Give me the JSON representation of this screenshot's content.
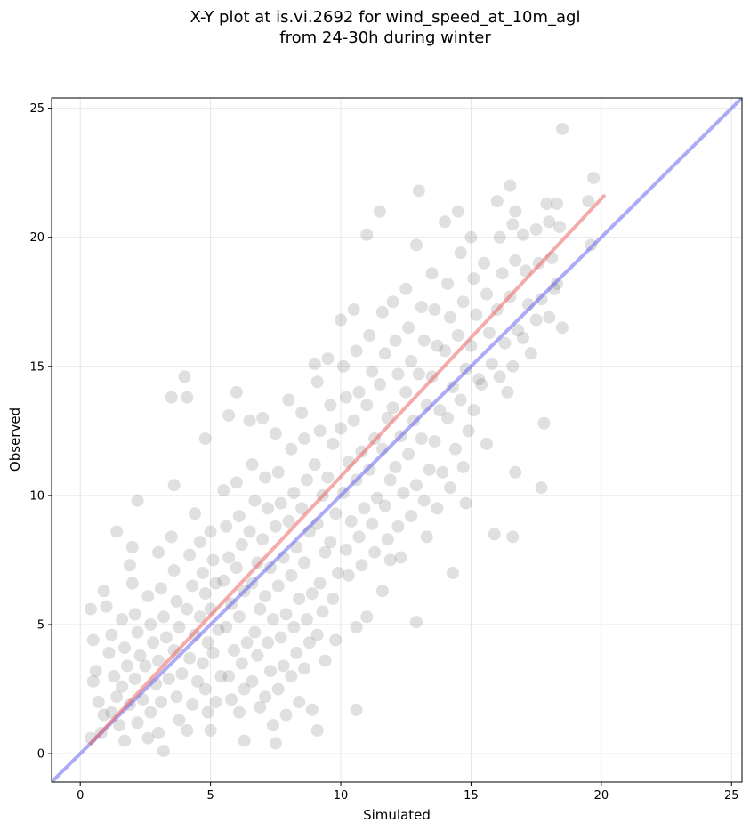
{
  "chart_data": {
    "type": "scatter",
    "title_line1": "X-Y plot at is.vi.2692 for wind_speed_at_10m_agl",
    "title_line2": "from 24-30h during winter",
    "xlabel": "Simulated",
    "ylabel": "Observed",
    "xlim": [
      -1.1,
      25.4
    ],
    "ylim": [
      -1.1,
      25.4
    ],
    "xticks": [
      0,
      5,
      10,
      15,
      20,
      25
    ],
    "yticks": [
      0,
      5,
      10,
      15,
      20,
      25
    ],
    "grid": true,
    "scatter_color": "#555555",
    "scatter_opacity": 0.18,
    "reference_line": {
      "name": "1:1",
      "color": "#6666ee",
      "from": [
        -1.1,
        -1.1
      ],
      "to": [
        25.4,
        25.4
      ]
    },
    "fit_line": {
      "name": "fit",
      "color": "#ee6666",
      "from": [
        0.4,
        0.4
      ],
      "to": [
        20.1,
        21.6
      ]
    },
    "points": [
      [
        0.4,
        5.6
      ],
      [
        0.5,
        4.4
      ],
      [
        0.6,
        3.2
      ],
      [
        0.5,
        2.8
      ],
      [
        0.7,
        2.0
      ],
      [
        0.9,
        1.5
      ],
      [
        0.8,
        0.8
      ],
      [
        0.4,
        0.6
      ],
      [
        0.9,
        6.3
      ],
      [
        1.0,
        5.7
      ],
      [
        1.2,
        4.6
      ],
      [
        1.1,
        3.9
      ],
      [
        1.3,
        3.0
      ],
      [
        1.4,
        2.2
      ],
      [
        1.2,
        1.6
      ],
      [
        1.5,
        1.1
      ],
      [
        1.4,
        8.6
      ],
      [
        1.6,
        5.2
      ],
      [
        1.7,
        4.1
      ],
      [
        1.8,
        3.4
      ],
      [
        1.6,
        2.6
      ],
      [
        1.9,
        1.9
      ],
      [
        1.7,
        0.5
      ],
      [
        1.9,
        7.3
      ],
      [
        2.0,
        6.6
      ],
      [
        2.1,
        5.4
      ],
      [
        2.2,
        4.7
      ],
      [
        2.3,
        3.8
      ],
      [
        2.1,
        2.9
      ],
      [
        2.4,
        2.1
      ],
      [
        2.2,
        1.2
      ],
      [
        2.6,
        0.6
      ],
      [
        2.2,
        9.8
      ],
      [
        2.0,
        8.0
      ],
      [
        2.6,
        6.1
      ],
      [
        2.7,
        5.0
      ],
      [
        2.8,
        4.3
      ],
      [
        2.5,
        3.4
      ],
      [
        2.9,
        2.7
      ],
      [
        2.7,
        1.6
      ],
      [
        3.0,
        7.8
      ],
      [
        3.1,
        6.4
      ],
      [
        3.2,
        5.3
      ],
      [
        3.3,
        4.5
      ],
      [
        3.0,
        3.6
      ],
      [
        3.4,
        2.9
      ],
      [
        3.1,
        2.0
      ],
      [
        3.0,
        0.8
      ],
      [
        3.2,
        0.1
      ],
      [
        3.5,
        13.8
      ],
      [
        3.5,
        8.4
      ],
      [
        3.6,
        7.1
      ],
      [
        3.7,
        5.9
      ],
      [
        3.8,
        4.9
      ],
      [
        3.6,
        4.0
      ],
      [
        3.9,
        3.1
      ],
      [
        3.7,
        2.2
      ],
      [
        3.8,
        1.3
      ],
      [
        3.6,
        10.4
      ],
      [
        4.0,
        14.6
      ],
      [
        4.1,
        13.8
      ],
      [
        4.2,
        7.7
      ],
      [
        4.3,
        6.5
      ],
      [
        4.1,
        5.6
      ],
      [
        4.4,
        4.6
      ],
      [
        4.2,
        3.7
      ],
      [
        4.5,
        2.8
      ],
      [
        4.3,
        1.9
      ],
      [
        4.1,
        0.9
      ],
      [
        4.4,
        9.3
      ],
      [
        4.6,
        8.2
      ],
      [
        4.7,
        7.0
      ],
      [
        4.8,
        6.2
      ],
      [
        4.6,
        5.3
      ],
      [
        4.9,
        4.3
      ],
      [
        4.7,
        3.5
      ],
      [
        4.8,
        2.5
      ],
      [
        4.9,
        1.6
      ],
      [
        4.8,
        12.2
      ],
      [
        5.0,
        8.6
      ],
      [
        5.1,
        7.5
      ],
      [
        5.2,
        6.6
      ],
      [
        5.0,
        5.6
      ],
      [
        5.3,
        4.8
      ],
      [
        5.1,
        3.9
      ],
      [
        5.4,
        3.0
      ],
      [
        5.2,
        2.0
      ],
      [
        5.0,
        0.9
      ],
      [
        5.5,
        10.2
      ],
      [
        5.6,
        8.8
      ],
      [
        5.7,
        7.6
      ],
      [
        5.5,
        6.7
      ],
      [
        5.8,
        5.8
      ],
      [
        5.6,
        4.9
      ],
      [
        5.9,
        4.0
      ],
      [
        5.7,
        3.0
      ],
      [
        5.8,
        2.1
      ],
      [
        5.7,
        13.1
      ],
      [
        6.0,
        14.0
      ],
      [
        6.0,
        10.5
      ],
      [
        6.1,
        9.2
      ],
      [
        6.2,
        8.1
      ],
      [
        6.0,
        7.2
      ],
      [
        6.3,
        6.3
      ],
      [
        6.1,
        5.3
      ],
      [
        6.4,
        4.3
      ],
      [
        6.2,
        3.5
      ],
      [
        6.3,
        2.5
      ],
      [
        6.1,
        1.6
      ],
      [
        6.3,
        0.5
      ],
      [
        6.5,
        12.9
      ],
      [
        6.6,
        11.2
      ],
      [
        6.7,
        9.8
      ],
      [
        6.5,
        8.6
      ],
      [
        6.8,
        7.4
      ],
      [
        6.6,
        6.6
      ],
      [
        6.9,
        5.6
      ],
      [
        6.7,
        4.7
      ],
      [
        6.8,
        3.8
      ],
      [
        6.6,
        2.8
      ],
      [
        6.9,
        1.8
      ],
      [
        7.0,
        13.0
      ],
      [
        7.1,
        10.7
      ],
      [
        7.2,
        9.5
      ],
      [
        7.0,
        8.3
      ],
      [
        7.3,
        7.2
      ],
      [
        7.1,
        6.1
      ],
      [
        7.4,
        5.2
      ],
      [
        7.2,
        4.3
      ],
      [
        7.3,
        3.2
      ],
      [
        7.1,
        2.2
      ],
      [
        7.4,
        1.1
      ],
      [
        7.5,
        12.4
      ],
      [
        7.6,
        10.9
      ],
      [
        7.7,
        9.7
      ],
      [
        7.5,
        8.8
      ],
      [
        7.8,
        7.6
      ],
      [
        7.6,
        6.5
      ],
      [
        7.9,
        5.4
      ],
      [
        7.7,
        4.5
      ],
      [
        7.8,
        3.4
      ],
      [
        7.6,
        2.5
      ],
      [
        7.9,
        1.5
      ],
      [
        7.5,
        0.4
      ],
      [
        8.0,
        13.7
      ],
      [
        8.1,
        11.8
      ],
      [
        8.2,
        10.1
      ],
      [
        8.0,
        9.0
      ],
      [
        8.3,
        8.0
      ],
      [
        8.1,
        6.9
      ],
      [
        8.4,
        6.0
      ],
      [
        8.2,
        4.9
      ],
      [
        8.3,
        3.9
      ],
      [
        8.1,
        3.0
      ],
      [
        8.4,
        2.0
      ],
      [
        8.5,
        13.2
      ],
      [
        8.6,
        12.2
      ],
      [
        8.7,
        10.6
      ],
      [
        8.5,
        9.5
      ],
      [
        8.8,
        8.6
      ],
      [
        8.6,
        7.4
      ],
      [
        8.9,
        6.2
      ],
      [
        8.7,
        5.2
      ],
      [
        8.8,
        4.3
      ],
      [
        8.6,
        3.3
      ],
      [
        8.9,
        1.7
      ],
      [
        9.0,
        15.1
      ],
      [
        9.1,
        14.4
      ],
      [
        9.2,
        12.5
      ],
      [
        9.0,
        11.2
      ],
      [
        9.3,
        10.0
      ],
      [
        9.1,
        8.9
      ],
      [
        9.4,
        7.8
      ],
      [
        9.2,
        6.6
      ],
      [
        9.3,
        5.5
      ],
      [
        9.1,
        4.6
      ],
      [
        9.4,
        3.6
      ],
      [
        9.1,
        0.9
      ],
      [
        9.5,
        15.3
      ],
      [
        9.6,
        13.5
      ],
      [
        9.7,
        12.0
      ],
      [
        9.5,
        10.7
      ],
      [
        9.8,
        9.3
      ],
      [
        9.6,
        8.2
      ],
      [
        9.9,
        7.0
      ],
      [
        9.7,
        6.0
      ],
      [
        9.8,
        4.4
      ],
      [
        10.0,
        16.8
      ],
      [
        10.1,
        15.0
      ],
      [
        10.2,
        13.8
      ],
      [
        10.0,
        12.6
      ],
      [
        10.3,
        11.3
      ],
      [
        10.1,
        10.1
      ],
      [
        10.4,
        9.0
      ],
      [
        10.2,
        7.9
      ],
      [
        10.3,
        6.9
      ],
      [
        10.5,
        17.2
      ],
      [
        10.6,
        15.6
      ],
      [
        10.7,
        14.0
      ],
      [
        10.5,
        12.9
      ],
      [
        10.8,
        11.7
      ],
      [
        10.6,
        10.6
      ],
      [
        10.9,
        9.5
      ],
      [
        10.7,
        8.4
      ],
      [
        10.8,
        7.3
      ],
      [
        10.6,
        4.9
      ],
      [
        10.6,
        1.7
      ],
      [
        11.0,
        20.1
      ],
      [
        11.1,
        16.2
      ],
      [
        11.2,
        14.8
      ],
      [
        11.0,
        13.5
      ],
      [
        11.3,
        12.2
      ],
      [
        11.1,
        11.0
      ],
      [
        11.4,
        9.9
      ],
      [
        11.2,
        8.9
      ],
      [
        11.3,
        7.8
      ],
      [
        11.0,
        5.3
      ],
      [
        11.5,
        21.0
      ],
      [
        11.6,
        17.1
      ],
      [
        11.7,
        15.5
      ],
      [
        11.5,
        14.3
      ],
      [
        11.8,
        13.0
      ],
      [
        11.6,
        11.8
      ],
      [
        11.9,
        10.6
      ],
      [
        11.7,
        9.6
      ],
      [
        11.8,
        8.3
      ],
      [
        11.6,
        6.3
      ],
      [
        11.9,
        7.5
      ],
      [
        12.0,
        17.5
      ],
      [
        12.1,
        16.0
      ],
      [
        12.2,
        14.7
      ],
      [
        12.0,
        13.4
      ],
      [
        12.3,
        12.3
      ],
      [
        12.1,
        11.1
      ],
      [
        12.4,
        10.1
      ],
      [
        12.2,
        8.8
      ],
      [
        12.3,
        7.6
      ],
      [
        12.5,
        18.0
      ],
      [
        12.6,
        16.5
      ],
      [
        12.7,
        15.2
      ],
      [
        12.5,
        14.0
      ],
      [
        12.8,
        12.9
      ],
      [
        12.6,
        11.6
      ],
      [
        12.9,
        10.4
      ],
      [
        12.7,
        9.2
      ],
      [
        12.9,
        5.1
      ],
      [
        13.0,
        21.8
      ],
      [
        12.9,
        19.7
      ],
      [
        13.1,
        17.3
      ],
      [
        13.2,
        16.0
      ],
      [
        13.0,
        14.7
      ],
      [
        13.3,
        13.5
      ],
      [
        13.1,
        12.2
      ],
      [
        13.4,
        11.0
      ],
      [
        13.2,
        9.8
      ],
      [
        13.3,
        8.4
      ],
      [
        13.5,
        18.6
      ],
      [
        13.6,
        17.2
      ],
      [
        13.7,
        15.8
      ],
      [
        13.5,
        14.6
      ],
      [
        13.8,
        13.3
      ],
      [
        13.6,
        12.1
      ],
      [
        13.9,
        10.9
      ],
      [
        13.7,
        9.5
      ],
      [
        14.0,
        20.6
      ],
      [
        14.1,
        18.2
      ],
      [
        14.2,
        16.9
      ],
      [
        14.0,
        15.6
      ],
      [
        14.3,
        14.2
      ],
      [
        14.1,
        13.0
      ],
      [
        14.4,
        11.8
      ],
      [
        14.2,
        10.3
      ],
      [
        14.3,
        7.0
      ],
      [
        14.5,
        21.0
      ],
      [
        14.6,
        19.4
      ],
      [
        14.7,
        17.5
      ],
      [
        14.5,
        16.2
      ],
      [
        14.8,
        14.9
      ],
      [
        14.6,
        13.7
      ],
      [
        14.9,
        12.5
      ],
      [
        14.7,
        11.1
      ],
      [
        14.8,
        9.7
      ],
      [
        15.0,
        20.0
      ],
      [
        15.1,
        18.4
      ],
      [
        15.2,
        17.0
      ],
      [
        15.0,
        15.8
      ],
      [
        15.3,
        14.5
      ],
      [
        15.1,
        13.3
      ],
      [
        15.4,
        14.3
      ],
      [
        15.6,
        12.0
      ],
      [
        15.5,
        19.0
      ],
      [
        15.6,
        17.8
      ],
      [
        15.7,
        16.3
      ],
      [
        15.8,
        15.1
      ],
      [
        15.9,
        8.5
      ],
      [
        16.0,
        21.4
      ],
      [
        16.1,
        20.0
      ],
      [
        16.2,
        18.6
      ],
      [
        16.0,
        17.2
      ],
      [
        16.3,
        15.9
      ],
      [
        16.1,
        14.6
      ],
      [
        16.4,
        14.0
      ],
      [
        16.5,
        22.0
      ],
      [
        16.6,
        20.5
      ],
      [
        16.7,
        19.1
      ],
      [
        16.5,
        17.7
      ],
      [
        16.8,
        16.4
      ],
      [
        16.6,
        15.0
      ],
      [
        16.7,
        10.9
      ],
      [
        16.6,
        8.4
      ],
      [
        16.7,
        21.0
      ],
      [
        17.0,
        20.1
      ],
      [
        17.1,
        18.7
      ],
      [
        17.2,
        17.4
      ],
      [
        17.0,
        16.1
      ],
      [
        17.3,
        15.5
      ],
      [
        17.5,
        20.3
      ],
      [
        17.6,
        19.0
      ],
      [
        17.7,
        17.6
      ],
      [
        17.5,
        16.8
      ],
      [
        17.8,
        12.8
      ],
      [
        17.7,
        10.3
      ],
      [
        17.9,
        21.3
      ],
      [
        18.0,
        20.6
      ],
      [
        18.1,
        19.2
      ],
      [
        18.2,
        18.0
      ],
      [
        18.0,
        16.9
      ],
      [
        18.3,
        21.3
      ],
      [
        18.4,
        20.4
      ],
      [
        18.5,
        24.2
      ],
      [
        18.5,
        16.5
      ],
      [
        19.5,
        21.4
      ],
      [
        19.7,
        22.3
      ],
      [
        19.6,
        19.7
      ],
      [
        18.3,
        18.2
      ]
    ]
  }
}
